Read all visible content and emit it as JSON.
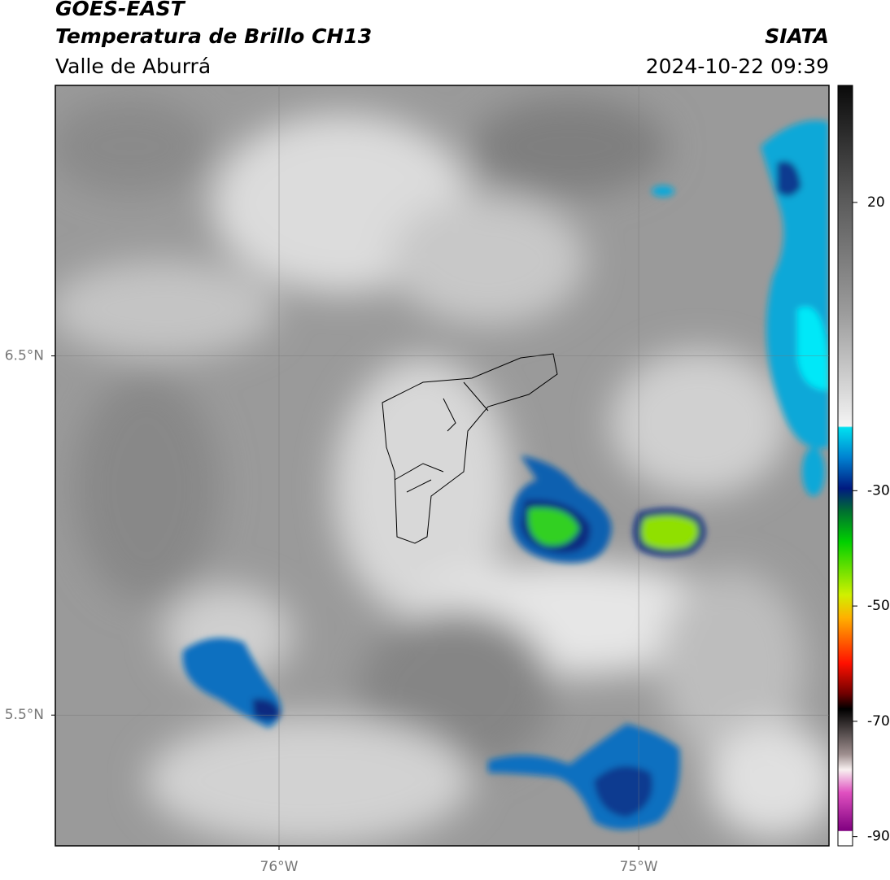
{
  "header": {
    "title": "GOES-EAST",
    "subtitle": "Temperatura de Brillo CH13",
    "region": "Valle de Aburrá",
    "source": "SIATA",
    "datetime": "2024-10-22 09:39"
  },
  "map": {
    "xlim": [
      -76.622,
      -74.471
    ],
    "ylim": [
      5.136,
      7.253
    ],
    "xticks": [
      {
        "value": -76,
        "label": "76°W"
      },
      {
        "value": -75,
        "label": "75°W"
      }
    ],
    "yticks": [
      {
        "value": 6.5,
        "label": "6.5°N"
      },
      {
        "value": 5.5,
        "label": "5.5°N"
      }
    ],
    "grid": true
  },
  "colorbar": {
    "lim": [
      -91.6,
      40.3
    ],
    "ticks": [
      20,
      -30,
      -50,
      -70,
      -90
    ]
  }
}
